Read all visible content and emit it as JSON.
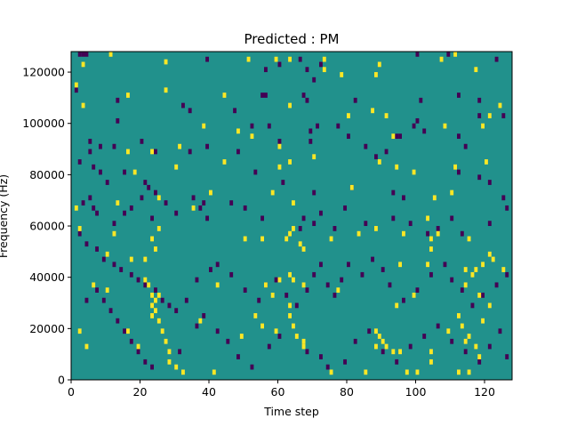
{
  "chart_data": {
    "type": "heatmap",
    "title": "Predicted : PM",
    "xlabel": "Time step",
    "ylabel": "Frequency (Hz)",
    "xlim": [
      0,
      128
    ],
    "ylim": [
      0,
      128000
    ],
    "x_ticks": [
      0,
      20,
      40,
      60,
      80,
      100,
      120
    ],
    "y_ticks": [
      0,
      20000,
      40000,
      60000,
      80000,
      100000,
      120000
    ],
    "x_tick_labels": [
      "0",
      "20",
      "40",
      "60",
      "80",
      "100",
      "120"
    ],
    "y_tick_labels": [
      "0",
      "20000",
      "40000",
      "60000",
      "80000",
      "100000",
      "120000"
    ],
    "y_bin_size": 1000,
    "background_value": 0,
    "colormap": {
      "-1": "#440154",
      "0": "#21918c",
      "1": "#fde725"
    },
    "cells_high": [
      [
        3,
        122000
      ],
      [
        11,
        126000
      ],
      [
        27,
        123000
      ],
      [
        51,
        124000
      ],
      [
        59,
        124000
      ],
      [
        63,
        124000
      ],
      [
        73,
        124000
      ],
      [
        73,
        120000
      ],
      [
        78,
        118000
      ],
      [
        88,
        118000
      ],
      [
        89,
        122000
      ],
      [
        107,
        124000
      ],
      [
        111,
        126000
      ],
      [
        117,
        120000
      ],
      [
        1,
        114000
      ],
      [
        16,
        110000
      ],
      [
        27,
        112000
      ],
      [
        44,
        110000
      ],
      [
        3,
        106000
      ],
      [
        63,
        106000
      ],
      [
        87,
        104000
      ],
      [
        80,
        102000
      ],
      [
        124,
        106000
      ],
      [
        121,
        102000
      ],
      [
        38,
        98000
      ],
      [
        48,
        96000
      ],
      [
        91,
        102000
      ],
      [
        108,
        98000
      ],
      [
        93,
        94000
      ],
      [
        119,
        98000
      ],
      [
        16,
        88000
      ],
      [
        23,
        88000
      ],
      [
        31,
        90000
      ],
      [
        52,
        94000
      ],
      [
        60,
        90000
      ],
      [
        18,
        80000
      ],
      [
        30,
        82000
      ],
      [
        44,
        84000
      ],
      [
        60,
        82000
      ],
      [
        63,
        84000
      ],
      [
        70,
        86000
      ],
      [
        89,
        84000
      ],
      [
        94,
        82000
      ],
      [
        99,
        80000
      ],
      [
        111,
        82000
      ],
      [
        120,
        84000
      ],
      [
        40,
        72000
      ],
      [
        58,
        72000
      ],
      [
        13,
        68000
      ],
      [
        25,
        70000
      ],
      [
        35,
        66000
      ],
      [
        64,
        68000
      ],
      [
        81,
        74000
      ],
      [
        105,
        70000
      ],
      [
        110,
        72000
      ],
      [
        1,
        66000
      ],
      [
        2,
        58000
      ],
      [
        25,
        58000
      ],
      [
        12,
        56000
      ],
      [
        23,
        54000
      ],
      [
        10,
        48000
      ],
      [
        17,
        46000
      ],
      [
        21,
        46000
      ],
      [
        24,
        50000
      ],
      [
        50,
        54000
      ],
      [
        55,
        54000
      ],
      [
        62,
        54000
      ],
      [
        63,
        56000
      ],
      [
        64,
        58000
      ],
      [
        66,
        52000
      ],
      [
        67,
        50000
      ],
      [
        75,
        54000
      ],
      [
        83,
        56000
      ],
      [
        88,
        58000
      ],
      [
        96,
        56000
      ],
      [
        103,
        62000
      ],
      [
        104,
        54000
      ],
      [
        106,
        56000
      ],
      [
        104,
        50000
      ],
      [
        115,
        54000
      ],
      [
        114,
        42000
      ],
      [
        103,
        44000
      ],
      [
        95,
        44000
      ],
      [
        116,
        40000
      ],
      [
        117,
        42000
      ],
      [
        119,
        44000
      ],
      [
        121,
        48000
      ],
      [
        122,
        46000
      ],
      [
        125,
        42000
      ],
      [
        6,
        36000
      ],
      [
        10,
        34000
      ],
      [
        21,
        38000
      ],
      [
        22,
        36000
      ],
      [
        42,
        36000
      ],
      [
        56,
        36000
      ],
      [
        58,
        32000
      ],
      [
        60,
        38000
      ],
      [
        63,
        40000
      ],
      [
        64,
        38000
      ],
      [
        67,
        36000
      ],
      [
        77,
        34000
      ],
      [
        99,
        32000
      ],
      [
        114,
        36000
      ],
      [
        118,
        32000
      ],
      [
        23,
        32000
      ],
      [
        25,
        32000
      ],
      [
        24,
        30000
      ],
      [
        23,
        28000
      ],
      [
        24,
        26000
      ],
      [
        23,
        24000
      ],
      [
        25,
        22000
      ],
      [
        26,
        18000
      ],
      [
        16,
        18000
      ],
      [
        19,
        12000
      ],
      [
        27,
        14000
      ],
      [
        37,
        22000
      ],
      [
        63,
        28000
      ],
      [
        63,
        24000
      ],
      [
        64,
        20000
      ],
      [
        65,
        16000
      ],
      [
        67,
        14000
      ],
      [
        67,
        12000
      ],
      [
        49,
        16000
      ],
      [
        59,
        18000
      ],
      [
        53,
        24000
      ],
      [
        55,
        20000
      ],
      [
        94,
        28000
      ],
      [
        109,
        18000
      ],
      [
        112,
        24000
      ],
      [
        113,
        20000
      ],
      [
        115,
        16000
      ],
      [
        117,
        12000
      ],
      [
        118,
        8000
      ],
      [
        114,
        14000
      ],
      [
        119,
        22000
      ],
      [
        121,
        28000
      ],
      [
        88,
        18000
      ],
      [
        89,
        16000
      ],
      [
        90,
        14000
      ],
      [
        91,
        12000
      ],
      [
        88,
        12000
      ],
      [
        93,
        10000
      ],
      [
        95,
        10000
      ],
      [
        104,
        10000
      ],
      [
        104,
        6000
      ],
      [
        2,
        18000
      ],
      [
        4,
        12000
      ],
      [
        28,
        10000
      ],
      [
        28,
        6000
      ],
      [
        30,
        4000
      ],
      [
        32,
        2000
      ],
      [
        41,
        2000
      ],
      [
        75,
        2000
      ],
      [
        85,
        2000
      ],
      [
        97,
        2000
      ],
      [
        100,
        2000
      ],
      [
        112,
        2000
      ],
      [
        115,
        2000
      ]
    ],
    "cells_low": [
      [
        2,
        126000
      ],
      [
        3,
        126000
      ],
      [
        4,
        126000
      ],
      [
        39,
        124000
      ],
      [
        56,
        120000
      ],
      [
        60,
        122000
      ],
      [
        66,
        124000
      ],
      [
        68,
        120000
      ],
      [
        70,
        116000
      ],
      [
        72,
        122000
      ],
      [
        100,
        126000
      ],
      [
        109,
        126000
      ],
      [
        123,
        124000
      ],
      [
        1,
        112000
      ],
      [
        13,
        108000
      ],
      [
        32,
        106000
      ],
      [
        47,
        104000
      ],
      [
        55,
        110000
      ],
      [
        56,
        110000
      ],
      [
        67,
        110000
      ],
      [
        68,
        108000
      ],
      [
        82,
        108000
      ],
      [
        101,
        108000
      ],
      [
        112,
        110000
      ],
      [
        118,
        108000
      ],
      [
        125,
        102000
      ],
      [
        13,
        100000
      ],
      [
        34,
        104000
      ],
      [
        52,
        98000
      ],
      [
        57,
        98000
      ],
      [
        71,
        98000
      ],
      [
        77,
        98000
      ],
      [
        69,
        96000
      ],
      [
        80,
        94000
      ],
      [
        94,
        94000
      ],
      [
        99,
        98000
      ],
      [
        100,
        100000
      ],
      [
        102,
        96000
      ],
      [
        118,
        102000
      ],
      [
        114,
        90000
      ],
      [
        5,
        92000
      ],
      [
        5,
        88000
      ],
      [
        8,
        90000
      ],
      [
        12,
        90000
      ],
      [
        20,
        92000
      ],
      [
        24,
        88000
      ],
      [
        34,
        88000
      ],
      [
        39,
        90000
      ],
      [
        48,
        88000
      ],
      [
        60,
        92000
      ],
      [
        69,
        92000
      ],
      [
        85,
        90000
      ],
      [
        88,
        86000
      ],
      [
        91,
        88000
      ],
      [
        95,
        94000
      ],
      [
        112,
        94000
      ],
      [
        2,
        84000
      ],
      [
        6,
        82000
      ],
      [
        8,
        80000
      ],
      [
        10,
        76000
      ],
      [
        15,
        80000
      ],
      [
        21,
        76000
      ],
      [
        22,
        74000
      ],
      [
        24,
        72000
      ],
      [
        35,
        70000
      ],
      [
        38,
        68000
      ],
      [
        53,
        80000
      ],
      [
        61,
        76000
      ],
      [
        70,
        72000
      ],
      [
        81,
        74000
      ],
      [
        93,
        72000
      ],
      [
        96,
        70000
      ],
      [
        112,
        80000
      ],
      [
        118,
        78000
      ],
      [
        121,
        76000
      ],
      [
        125,
        70000
      ],
      [
        3,
        68000
      ],
      [
        5,
        70000
      ],
      [
        6,
        66000
      ],
      [
        7,
        64000
      ],
      [
        12,
        60000
      ],
      [
        15,
        64000
      ],
      [
        17,
        66000
      ],
      [
        20,
        70000
      ],
      [
        23,
        62000
      ],
      [
        27,
        68000
      ],
      [
        30,
        64000
      ],
      [
        37,
        66000
      ],
      [
        39,
        62000
      ],
      [
        46,
        68000
      ],
      [
        50,
        66000
      ],
      [
        55,
        62000
      ],
      [
        66,
        58000
      ],
      [
        67,
        62000
      ],
      [
        70,
        60000
      ],
      [
        72,
        64000
      ],
      [
        76,
        58000
      ],
      [
        79,
        66000
      ],
      [
        85,
        60000
      ],
      [
        93,
        62000
      ],
      [
        98,
        60000
      ],
      [
        103,
        56000
      ],
      [
        106,
        58000
      ],
      [
        110,
        62000
      ],
      [
        113,
        56000
      ],
      [
        121,
        60000
      ],
      [
        126,
        66000
      ],
      [
        2,
        56000
      ],
      [
        4,
        52000
      ],
      [
        7,
        50000
      ],
      [
        9,
        46000
      ],
      [
        12,
        44000
      ],
      [
        14,
        42000
      ],
      [
        17,
        40000
      ],
      [
        19,
        38000
      ],
      [
        21,
        36000
      ],
      [
        24,
        34000
      ],
      [
        26,
        30000
      ],
      [
        28,
        28000
      ],
      [
        30,
        26000
      ],
      [
        33,
        30000
      ],
      [
        36,
        38000
      ],
      [
        40,
        42000
      ],
      [
        42,
        44000
      ],
      [
        46,
        40000
      ],
      [
        50,
        34000
      ],
      [
        54,
        30000
      ],
      [
        56,
        36000
      ],
      [
        59,
        38000
      ],
      [
        62,
        32000
      ],
      [
        65,
        28000
      ],
      [
        68,
        34000
      ],
      [
        70,
        40000
      ],
      [
        72,
        44000
      ],
      [
        74,
        36000
      ],
      [
        76,
        32000
      ],
      [
        78,
        38000
      ],
      [
        80,
        44000
      ],
      [
        84,
        40000
      ],
      [
        87,
        46000
      ],
      [
        90,
        42000
      ],
      [
        92,
        36000
      ],
      [
        96,
        30000
      ],
      [
        100,
        34000
      ],
      [
        104,
        40000
      ],
      [
        108,
        44000
      ],
      [
        110,
        38000
      ],
      [
        113,
        34000
      ],
      [
        116,
        28000
      ],
      [
        119,
        32000
      ],
      [
        123,
        36000
      ],
      [
        126,
        40000
      ],
      [
        4,
        30000
      ],
      [
        7,
        34000
      ],
      [
        9,
        30000
      ],
      [
        11,
        26000
      ],
      [
        13,
        22000
      ],
      [
        15,
        18000
      ],
      [
        17,
        14000
      ],
      [
        19,
        10000
      ],
      [
        21,
        6000
      ],
      [
        23,
        4000
      ],
      [
        31,
        10000
      ],
      [
        36,
        20000
      ],
      [
        38,
        24000
      ],
      [
        42,
        18000
      ],
      [
        45,
        14000
      ],
      [
        48,
        8000
      ],
      [
        52,
        4000
      ],
      [
        57,
        12000
      ],
      [
        60,
        16000
      ],
      [
        68,
        10000
      ],
      [
        72,
        8000
      ],
      [
        74,
        4000
      ],
      [
        79,
        6000
      ],
      [
        82,
        14000
      ],
      [
        86,
        18000
      ],
      [
        90,
        10000
      ],
      [
        94,
        6000
      ],
      [
        98,
        12000
      ],
      [
        102,
        16000
      ],
      [
        106,
        20000
      ],
      [
        110,
        14000
      ],
      [
        114,
        10000
      ],
      [
        118,
        6000
      ],
      [
        121,
        12000
      ],
      [
        124,
        18000
      ],
      [
        126,
        8000
      ]
    ]
  }
}
